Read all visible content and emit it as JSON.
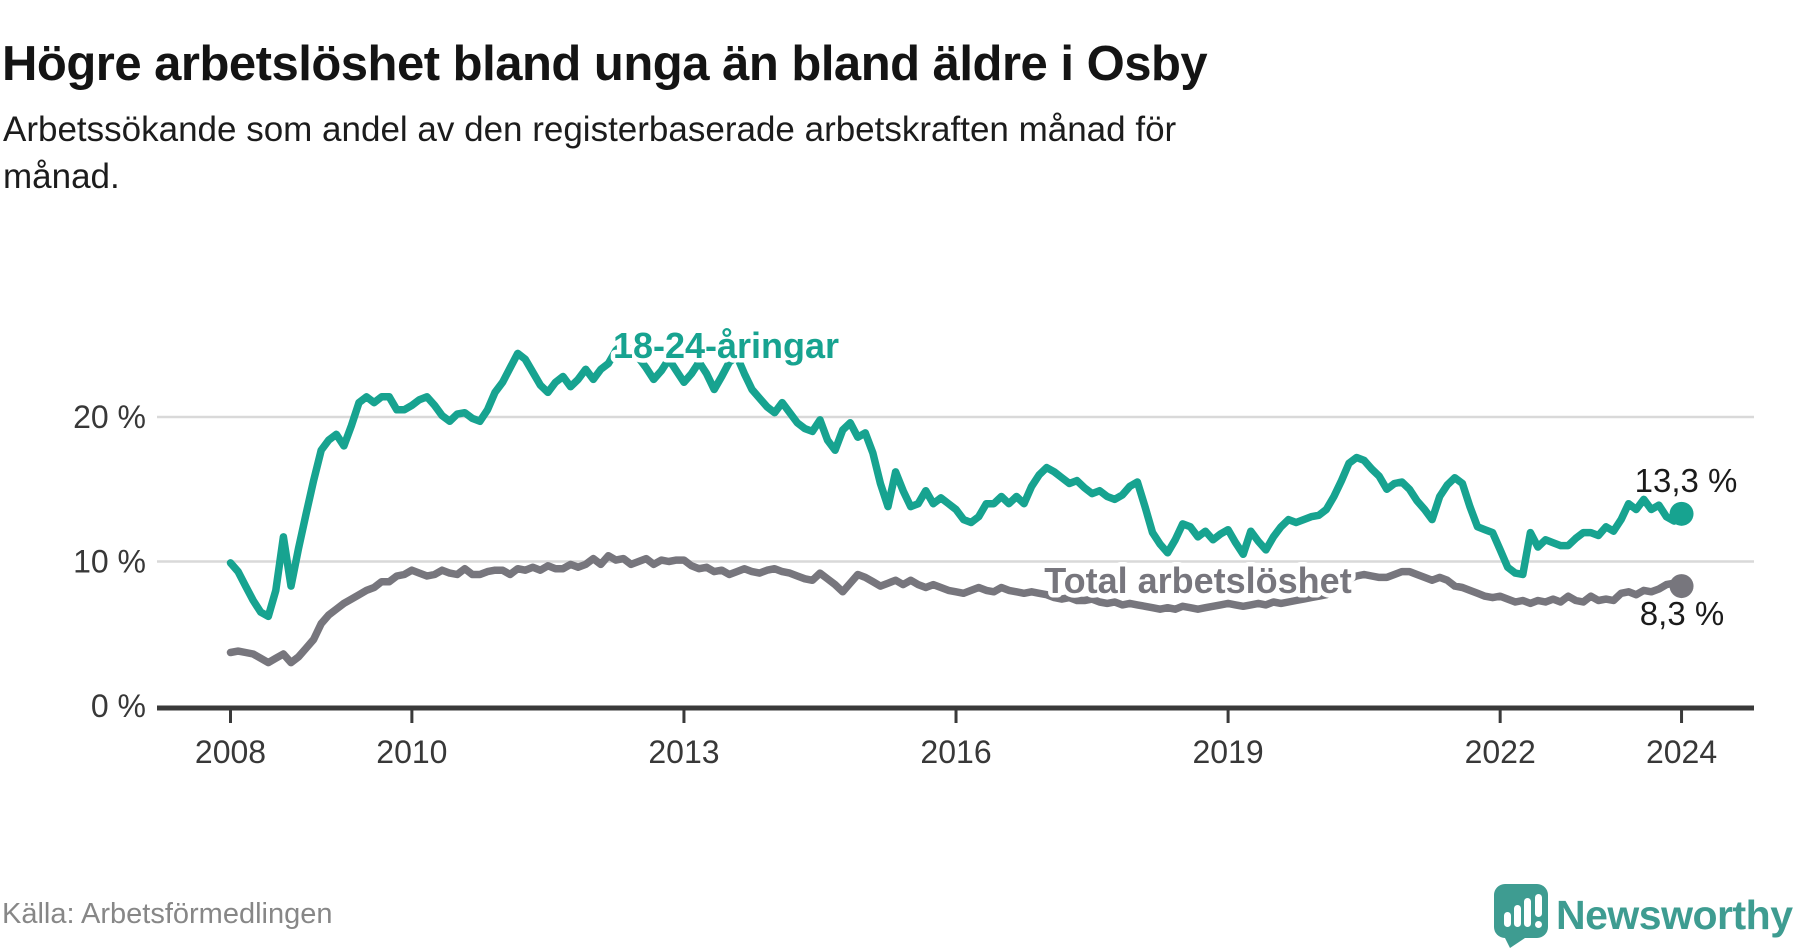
{
  "header": {
    "title": "Högre arbetslöshet bland unga än bland äldre i Osby",
    "subtitle_lines": [
      "Arbetssökande som andel av den registerbaserade arbetskraften månad för",
      "månad."
    ]
  },
  "footer": {
    "source": "Källa: Arbetsförmedlingen",
    "brand": "Newsworthy"
  },
  "theme": {
    "accent_teal": "#17a390",
    "series_gray": "#77767d",
    "grid_color": "#d9d9d9",
    "axis_color": "#3a3a3a",
    "axis_text_color": "#383838",
    "value_label_color": "#1b1b1b",
    "brand_teal": "#3e9c91"
  },
  "chart_data": {
    "type": "line",
    "title": "Högre arbetslöshet bland unga än bland äldre i Osby",
    "subtitle": "Arbetssökande som andel av den registerbaserade arbetskraften månad för månad.",
    "frequency": "monthly",
    "x_start": "2008-01",
    "x_end": "2024-01",
    "x_ticks": [
      2008,
      2010,
      2013,
      2016,
      2019,
      2022,
      2024
    ],
    "y_ticks": [
      {
        "label": "0 %",
        "value": 0
      },
      {
        "label": "10 %",
        "value": 10
      },
      {
        "label": "20 %",
        "value": 20
      }
    ],
    "ylim": [
      0,
      27
    ],
    "grid": "horizontal",
    "legend_position": "inline-labels",
    "series": [
      {
        "name": "Total arbetslöshet",
        "color": "#77767d",
        "end_label": "8,3 %",
        "end_value": 8.3,
        "values": [
          3.7,
          3.8,
          3.7,
          3.6,
          3.3,
          3.0,
          3.3,
          3.6,
          3.0,
          3.4,
          4.0,
          4.6,
          5.7,
          6.3,
          6.7,
          7.1,
          7.4,
          7.7,
          8.0,
          8.2,
          8.6,
          8.6,
          9.0,
          9.1,
          9.4,
          9.2,
          9.0,
          9.1,
          9.4,
          9.2,
          9.1,
          9.5,
          9.1,
          9.1,
          9.3,
          9.4,
          9.4,
          9.1,
          9.5,
          9.4,
          9.6,
          9.4,
          9.7,
          9.5,
          9.5,
          9.8,
          9.6,
          9.8,
          10.2,
          9.8,
          10.4,
          10.1,
          10.2,
          9.8,
          10.0,
          10.2,
          9.8,
          10.1,
          10.0,
          10.1,
          10.1,
          9.7,
          9.5,
          9.6,
          9.3,
          9.4,
          9.1,
          9.3,
          9.5,
          9.3,
          9.2,
          9.4,
          9.5,
          9.3,
          9.2,
          9.0,
          8.8,
          8.7,
          9.2,
          8.8,
          8.4,
          7.9,
          8.5,
          9.1,
          8.9,
          8.6,
          8.3,
          8.5,
          8.7,
          8.4,
          8.7,
          8.4,
          8.2,
          8.4,
          8.2,
          8.0,
          7.9,
          7.8,
          8.0,
          8.2,
          8.0,
          7.9,
          8.2,
          8.0,
          7.9,
          7.8,
          7.9,
          7.8,
          7.7,
          7.5,
          7.4,
          7.5,
          7.3,
          7.3,
          7.4,
          7.2,
          7.1,
          7.2,
          7.0,
          7.1,
          7.0,
          6.9,
          6.8,
          6.7,
          6.8,
          6.7,
          6.9,
          6.8,
          6.7,
          6.8,
          6.9,
          7.0,
          7.1,
          7.0,
          6.9,
          7.0,
          7.1,
          7.0,
          7.2,
          7.1,
          7.2,
          7.3,
          7.4,
          7.5,
          7.6,
          7.7,
          8.0,
          8.5,
          8.8,
          9.0,
          9.1,
          9.0,
          8.9,
          8.9,
          9.1,
          9.3,
          9.3,
          9.1,
          8.9,
          8.7,
          8.9,
          8.7,
          8.3,
          8.2,
          8.0,
          7.8,
          7.6,
          7.5,
          7.6,
          7.4,
          7.2,
          7.3,
          7.1,
          7.3,
          7.2,
          7.4,
          7.2,
          7.6,
          7.3,
          7.2,
          7.6,
          7.3,
          7.4,
          7.3,
          7.8,
          7.9,
          7.7,
          8.0,
          7.9,
          8.1,
          8.4,
          8.5,
          8.3
        ]
      },
      {
        "name": "18-24-åringar",
        "color": "#17a390",
        "end_label": "13,3 %",
        "end_value": 13.3,
        "values": [
          9.9,
          9.3,
          8.3,
          7.3,
          6.5,
          6.2,
          8.0,
          11.7,
          8.3,
          10.9,
          13.3,
          15.6,
          17.7,
          18.4,
          18.8,
          18.0,
          19.4,
          21.0,
          21.4,
          21.0,
          21.4,
          21.4,
          20.5,
          20.5,
          20.8,
          21.2,
          21.4,
          20.8,
          20.1,
          19.7,
          20.2,
          20.3,
          19.9,
          19.7,
          20.5,
          21.7,
          22.4,
          23.4,
          24.4,
          24.0,
          23.1,
          22.2,
          21.7,
          22.4,
          22.8,
          22.1,
          22.6,
          23.3,
          22.6,
          23.3,
          23.7,
          24.6,
          25.1,
          24.6,
          24.1,
          23.4,
          22.6,
          23.2,
          24.0,
          23.2,
          22.4,
          23.0,
          23.8,
          23.0,
          21.9,
          22.8,
          23.8,
          24.2,
          23.0,
          21.9,
          21.3,
          20.7,
          20.3,
          21.0,
          20.3,
          19.6,
          19.2,
          19.0,
          19.8,
          18.4,
          17.7,
          19.1,
          19.6,
          18.6,
          18.9,
          17.5,
          15.4,
          13.8,
          16.2,
          14.9,
          13.8,
          14.0,
          14.9,
          14.0,
          14.4,
          14.0,
          13.6,
          12.9,
          12.7,
          13.1,
          14.0,
          14.0,
          14.5,
          14.0,
          14.5,
          14.0,
          15.2,
          16.0,
          16.5,
          16.2,
          15.8,
          15.4,
          15.6,
          15.1,
          14.7,
          14.9,
          14.5,
          14.3,
          14.6,
          15.2,
          15.5,
          13.8,
          12.0,
          11.2,
          10.6,
          11.5,
          12.6,
          12.4,
          11.7,
          12.1,
          11.5,
          11.9,
          12.2,
          11.3,
          10.5,
          12.1,
          11.4,
          10.8,
          11.7,
          12.4,
          12.9,
          12.7,
          12.9,
          13.1,
          13.2,
          13.6,
          14.5,
          15.6,
          16.8,
          17.2,
          17.0,
          16.4,
          15.9,
          15.0,
          15.4,
          15.5,
          15.0,
          14.2,
          13.6,
          12.9,
          14.5,
          15.3,
          15.8,
          15.4,
          13.8,
          12.4,
          12.2,
          12.0,
          10.8,
          9.6,
          9.2,
          9.1,
          12.0,
          11.0,
          11.5,
          11.3,
          11.1,
          11.1,
          11.6,
          12.0,
          12.0,
          11.8,
          12.4,
          12.1,
          12.9,
          14.0,
          13.6,
          14.3,
          13.6,
          13.9,
          13.1,
          12.8,
          13.3
        ]
      }
    ]
  }
}
